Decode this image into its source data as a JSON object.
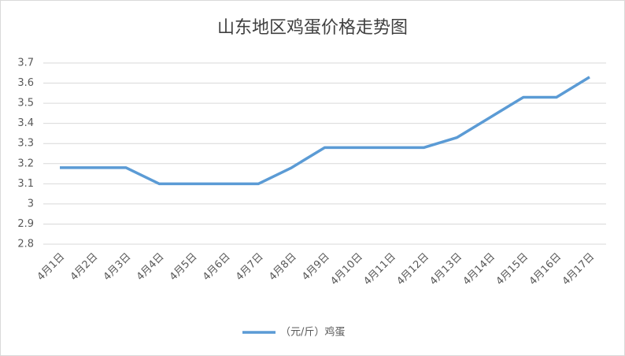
{
  "chart_data": {
    "type": "line",
    "title": "山东地区鸡蛋价格走势图",
    "categories": [
      "4月1日",
      "4月2日",
      "4月3日",
      "4月4日",
      "4月5日",
      "4月6日",
      "4月7日",
      "4月8日",
      "4月9日",
      "4月10日",
      "4月11日",
      "4月12日",
      "4月13日",
      "4月14日",
      "4月15日",
      "4月16日",
      "4月17日"
    ],
    "series": [
      {
        "name": "（元/斤）鸡蛋",
        "color": "#5b9bd5",
        "values": [
          3.18,
          3.18,
          3.18,
          3.1,
          3.1,
          3.1,
          3.1,
          3.18,
          3.28,
          3.28,
          3.28,
          3.28,
          3.33,
          3.43,
          3.53,
          3.53,
          3.63
        ]
      }
    ],
    "ylim": [
      2.8,
      3.7
    ],
    "yticks": [
      2.8,
      2.9,
      3,
      3.1,
      3.2,
      3.3,
      3.4,
      3.5,
      3.6,
      3.7
    ],
    "grid": true,
    "legend": "bottom"
  }
}
